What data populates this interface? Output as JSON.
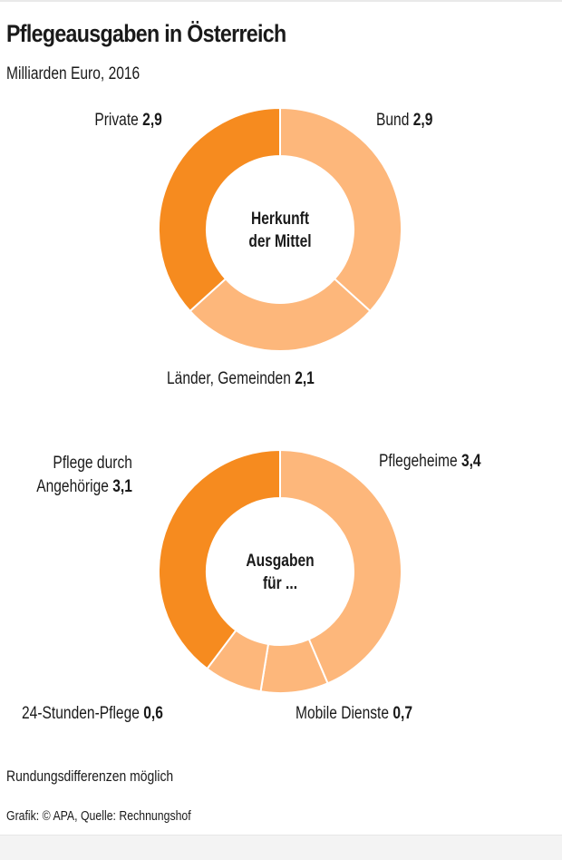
{
  "header": {
    "title": "Pflegeausgaben in Österreich",
    "subtitle": "Milliarden Euro, 2016"
  },
  "colors": {
    "dark_orange": "#F68B1F",
    "light_orange": "#FDB77B",
    "text": "#1a1a1a"
  },
  "chart_data": [
    {
      "type": "pie",
      "variant": "donut",
      "center_label": [
        "Herkunft",
        "der Mittel"
      ],
      "unit": "Milliarden Euro",
      "year": 2016,
      "slices": [
        {
          "label": "Bund",
          "value": 2.9,
          "value_text": "2,9",
          "color": "#FDB77B"
        },
        {
          "label": "Länder, Gemeinden",
          "value": 2.1,
          "value_text": "2,1",
          "color": "#FDB77B"
        },
        {
          "label": "Private",
          "value": 2.9,
          "value_text": "2,9",
          "color": "#F68B1F"
        }
      ]
    },
    {
      "type": "pie",
      "variant": "donut",
      "center_label": [
        "Ausgaben",
        "für ..."
      ],
      "unit": "Milliarden Euro",
      "year": 2016,
      "slices": [
        {
          "label": "Pflegeheime",
          "value": 3.4,
          "value_text": "3,4",
          "color": "#FDB77B"
        },
        {
          "label": "Mobile Dienste",
          "value": 0.7,
          "value_text": "0,7",
          "color": "#FDB77B"
        },
        {
          "label": "24-Stunden-Pflege",
          "value": 0.6,
          "value_text": "0,6",
          "color": "#FDB77B"
        },
        {
          "label": "Pflege durch Angehörige",
          "value": 3.1,
          "value_text": "3,1",
          "color": "#F68B1F"
        }
      ]
    }
  ],
  "labels": {
    "d1": {
      "private": {
        "name": "Private",
        "value": "2,9"
      },
      "bund": {
        "name": "Bund",
        "value": "2,9"
      },
      "laender": {
        "name": "Länder, Gemeinden",
        "value": "2,1"
      },
      "center1": "Herkunft",
      "center2": "der Mittel"
    },
    "d2": {
      "angehoerige1": "Pflege durch",
      "angehoerige2": "Angehörige",
      "angehoerige_value": "3,1",
      "pflegeheime": {
        "name": "Pflegeheime",
        "value": "3,4"
      },
      "stunden": {
        "name": "24-Stunden-Pflege",
        "value": "0,6"
      },
      "mobile": {
        "name": "Mobile Dienste",
        "value": "0,7"
      },
      "center1": "Ausgaben",
      "center2": "für ..."
    }
  },
  "footer": {
    "note": "Rundungsdifferenzen möglich",
    "credit": "Grafik: © APA, Quelle: Rechnungshof"
  }
}
